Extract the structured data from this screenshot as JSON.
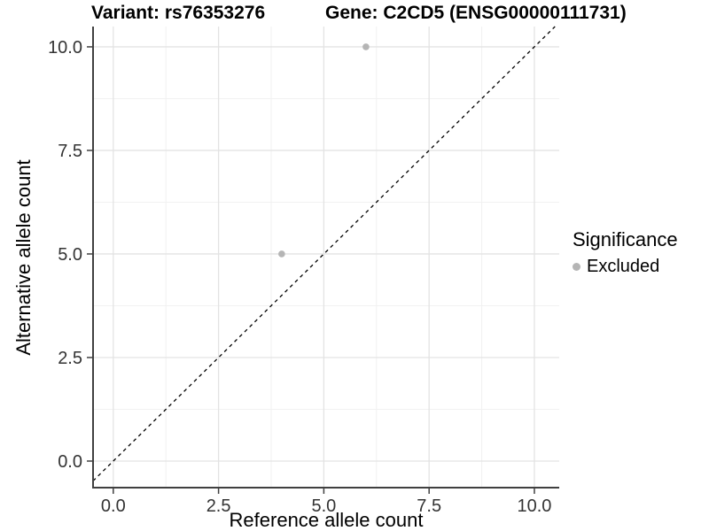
{
  "header": {
    "title_left": "Variant: rs76353276",
    "title_right": "Gene: C2CD5 (ENSG00000111731)"
  },
  "axes": {
    "x_label": "Reference allele count",
    "y_label": "Alternative allele count"
  },
  "legend": {
    "title": "Significance",
    "items": [
      {
        "label": "Excluded",
        "color": "#b5b5b5"
      }
    ]
  },
  "chart_data": {
    "type": "scatter",
    "title": "Variant: rs76353276 / Gene: C2CD5 (ENSG00000111731)",
    "xlabel": "Reference allele count",
    "ylabel": "Alternative allele count",
    "xlim": [
      -0.48,
      10.59
    ],
    "ylim": [
      -0.62,
      10.49
    ],
    "x_ticks": [
      0,
      2.5,
      5,
      7.5,
      10
    ],
    "x_tick_labels": [
      "0.0",
      "2.5",
      "5.0",
      "7.5",
      "10.0"
    ],
    "y_ticks": [
      0,
      2.5,
      5,
      7.5,
      10
    ],
    "y_tick_labels": [
      "0.0",
      "2.5",
      "5.0",
      "7.5",
      "10.0"
    ],
    "x_minor_ticks": [
      1.25,
      3.75,
      6.25,
      8.75
    ],
    "y_minor_ticks": [
      1.25,
      3.75,
      6.25,
      8.75
    ],
    "grid": true,
    "legend_position": "right",
    "legend_title": "Significance",
    "series": [
      {
        "name": "Excluded",
        "color": "#b5b5b5",
        "points": [
          {
            "x": 6,
            "y": 10
          },
          {
            "x": 4,
            "y": 5
          }
        ]
      }
    ],
    "reference_line": {
      "kind": "identity y=x",
      "style": "dashed",
      "color": "#000000"
    }
  },
  "colors": {
    "background": "#ffffff",
    "grid_major": "#e3e3e3",
    "grid_minor": "#f1f1f1",
    "axis_line": "#404040",
    "tick_text": "#333333",
    "dashed_line": "#000000"
  }
}
